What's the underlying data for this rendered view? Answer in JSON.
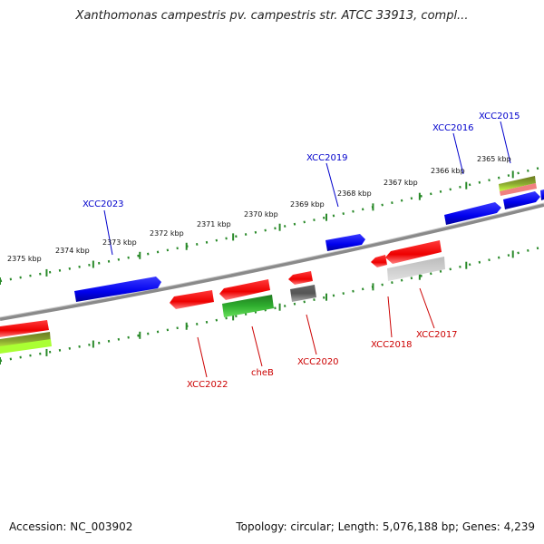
{
  "title": "Xanthomonas campestris pv. campestris str. ATCC 33913, compl...",
  "footer": {
    "accession": "Accession: NC_003902",
    "summary": "Topology: circular; Length: 5,076,188 bp; Genes: 4,239"
  },
  "colors": {
    "forward_gene": "#0000ee",
    "reverse_gene": "#ee0000",
    "backbone": "#8a8a8a",
    "ticks": "#2a8a2a",
    "forward_label": "#0000cc",
    "reverse_label": "#cc0000"
  },
  "scale": {
    "unit": "kbp",
    "ticks": [
      "2375 kbp",
      "2374 kbp",
      "2373 kbp",
      "2372 kbp",
      "2371 kbp",
      "2370 kbp",
      "2369 kbp",
      "2368 kbp",
      "2367 kbp",
      "2366 kbp",
      "2365 kbp"
    ]
  },
  "genes": {
    "forward": [
      "XCC2023",
      "XCC2019",
      "XCC2016",
      "XCC2015"
    ],
    "reverse": [
      "XCC2022",
      "cheB",
      "XCC2020",
      "XCC2018",
      "XCC2017"
    ]
  }
}
